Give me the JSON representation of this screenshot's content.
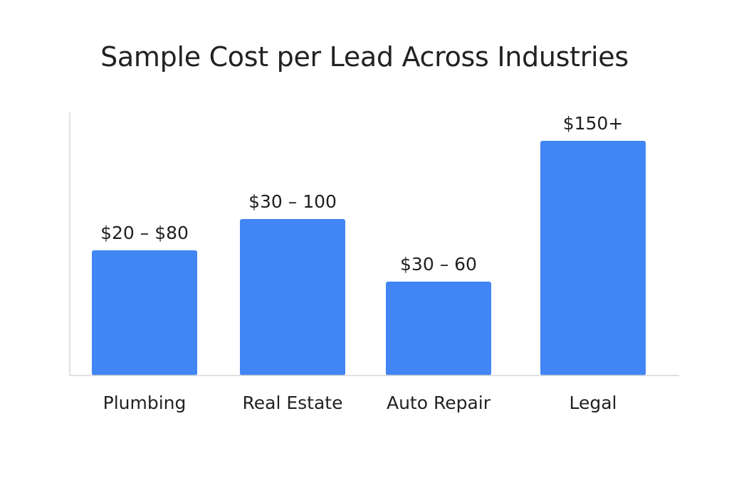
{
  "chart_data": {
    "type": "bar",
    "title": "Sample Cost per Lead Across Industries",
    "xlabel": "",
    "ylabel": "",
    "categories": [
      "Plumbing",
      "Real Estate",
      "Auto Repair",
      "Legal"
    ],
    "values": [
      80,
      100,
      60,
      150
    ],
    "data_labels": [
      "$20 – $80",
      "$30 – 100",
      "$30 – 60",
      "$150+"
    ],
    "grid": false,
    "legend": "none",
    "bar_color": "#4285f4"
  }
}
